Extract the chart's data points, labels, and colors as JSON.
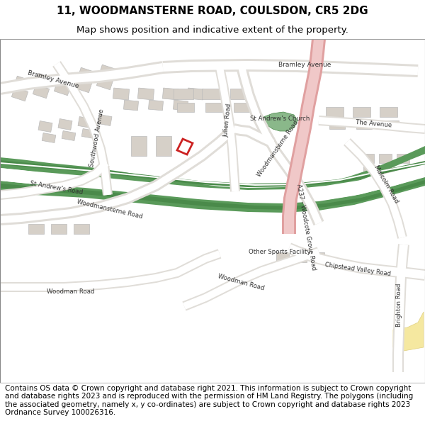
{
  "title_line1": "11, WOODMANSTERNE ROAD, COULSDON, CR5 2DG",
  "title_line2": "Map shows position and indicative extent of the property.",
  "title_fontsize": 11,
  "subtitle_fontsize": 9.5,
  "copyright_text": "Contains OS data © Crown copyright and database right 2021. This information is subject to Crown copyright and database rights 2023 and is reproduced with the permission of HM Land Registry. The polygons (including the associated geometry, namely x, y co-ordinates) are subject to Crown copyright and database rights 2023 Ordnance Survey 100026316.",
  "copyright_fontsize": 7.5,
  "map_bg": "#f5f3f0",
  "building_color": "#d6d0c8",
  "building_edge": "#bbbbbb",
  "road_white": "#ffffff",
  "road_gray": "#e0ddd8",
  "green_dark": "#4a8a4a",
  "green_mid": "#5a9a5a",
  "green_light": "#8ab88a",
  "pink_road": "#f0c8c8",
  "pink_road_edge": "#e0a0a0",
  "yellow_area": "#f5e8a0",
  "yellow_edge": "#e0d080",
  "red_property": "#cc2222",
  "text_dark": "#222222",
  "text_gray": "#444444"
}
